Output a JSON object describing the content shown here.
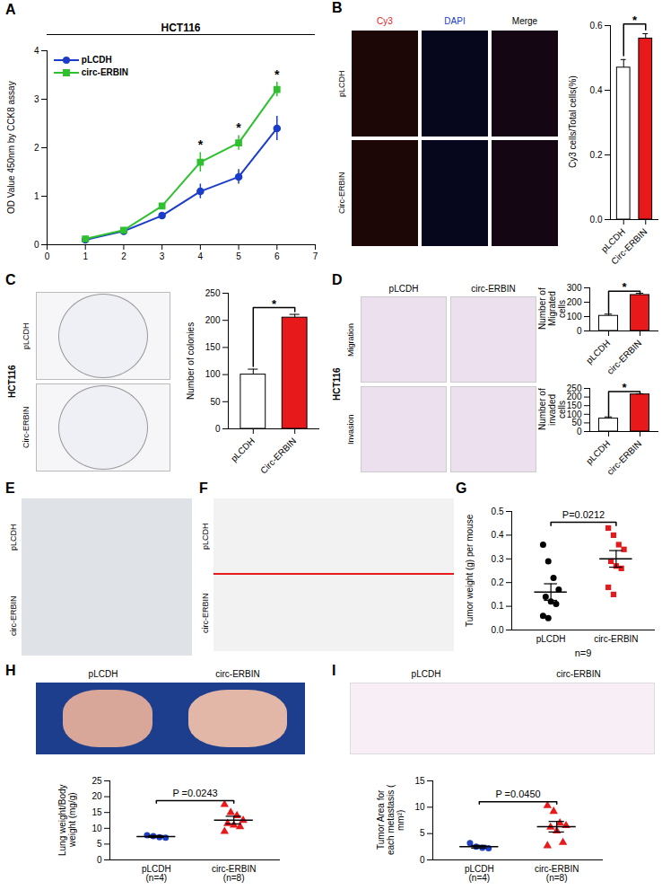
{
  "chart_data": [
    {
      "panel": "A",
      "type": "line",
      "title": "HCT116",
      "ylabel": "OD Value 450nm by CCK8 assay",
      "x": [
        1,
        2,
        3,
        4,
        5,
        6
      ],
      "xlim": [
        0,
        7
      ],
      "xticks": [
        0,
        1,
        2,
        3,
        4,
        5,
        6,
        7
      ],
      "ylim": [
        0,
        4
      ],
      "yticks": [
        0,
        1,
        2,
        3,
        4
      ],
      "legend": "top-left",
      "series": [
        {
          "name": "pLCDH",
          "color": "#1a3cc8",
          "marker": "circle",
          "values": [
            0.1,
            0.28,
            0.6,
            1.1,
            1.4,
            2.4
          ],
          "errors": [
            0.05,
            0.03,
            0.05,
            0.15,
            0.15,
            0.25
          ]
        },
        {
          "name": "circ-ERBIN",
          "color": "#2fc02f",
          "marker": "square",
          "values": [
            0.12,
            0.3,
            0.8,
            1.7,
            2.1,
            3.2
          ],
          "errors": [
            0.03,
            0.03,
            0.05,
            0.2,
            0.15,
            0.15
          ]
        }
      ],
      "annotations": [
        {
          "text": "*",
          "x": 4
        },
        {
          "text": "*",
          "x": 5
        },
        {
          "text": "*",
          "x": 6
        }
      ]
    },
    {
      "type": "bar",
      "ylabel": "Cy3 cells/Total cells(%)",
      "categories": [
        "pLCDH",
        "Circ-ERBIN"
      ],
      "values": [
        0.47,
        0.56
      ],
      "errors": [
        0.025,
        0.015
      ],
      "colors": [
        "#ffffff",
        "#e8191b"
      ],
      "ylim": [
        0,
        0.6
      ],
      "yticks": [
        {
          "value": 0,
          "label": "0.0"
        },
        0.2,
        0.4,
        0.6
      ],
      "significance": "*"
    },
    {
      "type": "bar",
      "ylabel": "Number of colonies",
      "categories": [
        "pLCDH",
        "Circ-ERBIN"
      ],
      "values": [
        100,
        205
      ],
      "errors": [
        10,
        6
      ],
      "colors": [
        "#ffffff",
        "#e8191b"
      ],
      "ylim": [
        0,
        250
      ],
      "yticks": [
        0,
        50,
        100,
        150,
        200,
        250
      ],
      "significance": "*"
    },
    {
      "type": "bar",
      "ylabel": "Number of Migrated cells",
      "categories": [
        "pLCDH",
        "circ-ERBIN"
      ],
      "values": [
        105,
        250
      ],
      "errors": [
        12,
        12
      ],
      "colors": [
        "#ffffff",
        "#e8191b"
      ],
      "ylim": [
        0,
        300
      ],
      "yticks": [
        0,
        100,
        200,
        300
      ],
      "significance": "*"
    },
    {
      "type": "bar",
      "ylabel": "Number of invaded cells",
      "categories": [
        "pLCDH",
        "circ-ERBIN"
      ],
      "values": [
        75,
        215
      ],
      "errors": [
        10,
        4
      ],
      "colors": [
        "#ffffff",
        "#e8191b"
      ],
      "ylim": [
        0,
        250
      ],
      "yticks": [
        0,
        50,
        100,
        150,
        200,
        250
      ],
      "significance": "*"
    },
    {
      "panel": "G",
      "type": "scatter",
      "ylabel": "Tumor weight (g) per mouse",
      "categories": [
        "pLCDH",
        "circ-ERBIN"
      ],
      "ylim": [
        0,
        0.5
      ],
      "yticks": [
        {
          "value": 0,
          "label": "0.0"
        },
        0.1,
        0.2,
        0.3,
        0.4,
        0.5
      ],
      "groups": [
        {
          "color": "#000000",
          "marker": "circle",
          "values": [
            0.36,
            0.29,
            0.22,
            0.17,
            0.14,
            0.12,
            0.11,
            0.06,
            0.05
          ],
          "mean": 0.16,
          "error": 0.035
        },
        {
          "color": "#e8191b",
          "marker": "square",
          "values": [
            0.43,
            0.4,
            0.36,
            0.34,
            0.29,
            0.27,
            0.26,
            0.18,
            0.15
          ],
          "mean": 0.3,
          "error": 0.035
        }
      ],
      "p_value_label": "P=0.0212",
      "note": "n=9"
    },
    {
      "type": "scatter",
      "ylabel": "Lung weight/Body weight (mg/g)",
      "categories": [
        "pLCDH\n(n=4)",
        "circ-ERBIN\n(n=8)"
      ],
      "ylim": [
        0,
        25
      ],
      "yticks": [
        0,
        5,
        10,
        15,
        20,
        25
      ],
      "groups": [
        {
          "color": "#1f3fc4",
          "marker": "circle",
          "values": [
            7.8,
            7.5,
            7.2,
            7.0
          ],
          "mean": 7.4,
          "error": 0.3
        },
        {
          "color": "#e8191b",
          "marker": "triangle",
          "values": [
            17.5,
            15.0,
            14.0,
            12.5,
            11.5,
            11.0,
            10.5,
            9.0
          ],
          "mean": 12.6,
          "error": 1.2
        }
      ],
      "p_value_label": "P =0.0243"
    },
    {
      "type": "scatter",
      "ylabel": "Tumor Area for each metastasis ( mm²)",
      "categories": [
        "pLCDH\n(n=4)",
        "circ-ERBIN\n(n=8)"
      ],
      "ylim": [
        0,
        15
      ],
      "yticks": [
        0,
        5,
        10,
        15
      ],
      "groups": [
        {
          "color": "#1f3fc4",
          "marker": "circle",
          "values": [
            3.2,
            2.5,
            2.3,
            2.2
          ],
          "mean": 2.5,
          "error": 0.25
        },
        {
          "color": "#e8191b",
          "marker": "triangle",
          "values": [
            10.3,
            9.2,
            7.0,
            6.5,
            6.2,
            5.5,
            3.3,
            2.7
          ],
          "mean": 6.3,
          "error": 1.0
        }
      ],
      "p_value_label": "P =0.0450"
    }
  ],
  "images": [
    {
      "panel": "B",
      "column_labels": [
        "Cy3",
        "DAPI",
        "Merge"
      ],
      "row_labels": [
        "pLCDH",
        "Circ-ERBIN"
      ]
    },
    {
      "panel": "C",
      "title": "HCT116",
      "row_labels": [
        "pLCDH",
        "Circ-ERBIN"
      ]
    },
    {
      "panel": "D",
      "title": "HCT116",
      "column_labels": [
        "pLCDH",
        "circ-ERBIN"
      ],
      "row_labels": [
        "Migration",
        "Invasion"
      ]
    },
    {
      "panel": "E",
      "row_labels": [
        "pLCDH",
        "circ-ERBIN"
      ]
    },
    {
      "panel": "F",
      "row_labels": [
        "pLCDH",
        "circ-ERBIN"
      ]
    },
    {
      "panel": "H",
      "column_labels": [
        "pLCDH",
        "circ-ERBIN"
      ]
    },
    {
      "panel": "I",
      "column_labels": [
        "pLCDH",
        "circ-ERBIN"
      ]
    }
  ]
}
